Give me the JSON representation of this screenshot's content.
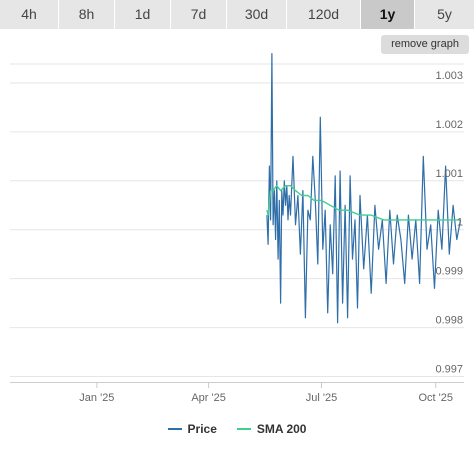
{
  "tabs": [
    {
      "label": "4h",
      "active": false
    },
    {
      "label": "8h",
      "active": false
    },
    {
      "label": "1d",
      "active": false
    },
    {
      "label": "7d",
      "active": false
    },
    {
      "label": "30d",
      "active": false
    },
    {
      "label": "120d",
      "active": false
    },
    {
      "label": "1y",
      "active": true
    },
    {
      "label": "5y",
      "active": false
    }
  ],
  "remove_graph_label": "remove graph",
  "legend": {
    "price_label": "Price",
    "sma_label": "SMA 200"
  },
  "colors": {
    "price": "#2f6ea8",
    "sma": "#3fcf8e",
    "grid": "#e6e6e6"
  },
  "chart_data": {
    "type": "line",
    "x_ticks": [
      "Jan '25",
      "Apr '25",
      "Jul '25",
      "Oct '25"
    ],
    "y_ticks": [
      "0.997",
      "0.998",
      "0.999",
      "1",
      "1.001",
      "1.002",
      "1.003"
    ],
    "ylim": [
      0.997,
      1.0035
    ],
    "xlim": [
      "2024-10-23",
      "2025-10-23"
    ],
    "grid": true,
    "legend_position": "bottom",
    "series": [
      {
        "name": "Price",
        "color": "#2f6ea8",
        "x": [
          "2025-05-18",
          "2025-05-19",
          "2025-05-20",
          "2025-05-21",
          "2025-05-22",
          "2025-05-23",
          "2025-05-24",
          "2025-05-25",
          "2025-05-26",
          "2025-05-27",
          "2025-05-28",
          "2025-05-29",
          "2025-05-30",
          "2025-05-31",
          "2025-06-01",
          "2025-06-02",
          "2025-06-03",
          "2025-06-04",
          "2025-06-05",
          "2025-06-06",
          "2025-06-08",
          "2025-06-10",
          "2025-06-12",
          "2025-06-14",
          "2025-06-16",
          "2025-06-18",
          "2025-06-20",
          "2025-06-22",
          "2025-06-24",
          "2025-06-26",
          "2025-06-28",
          "2025-06-30",
          "2025-07-02",
          "2025-07-04",
          "2025-07-06",
          "2025-07-08",
          "2025-07-10",
          "2025-07-12",
          "2025-07-14",
          "2025-07-16",
          "2025-07-18",
          "2025-07-20",
          "2025-07-22",
          "2025-07-24",
          "2025-07-26",
          "2025-07-28",
          "2025-07-30",
          "2025-08-01",
          "2025-08-04",
          "2025-08-07",
          "2025-08-10",
          "2025-08-13",
          "2025-08-16",
          "2025-08-19",
          "2025-08-22",
          "2025-08-25",
          "2025-08-28",
          "2025-08-31",
          "2025-09-03",
          "2025-09-06",
          "2025-09-09",
          "2025-09-12",
          "2025-09-15",
          "2025-09-18",
          "2025-09-21",
          "2025-09-24",
          "2025-09-27",
          "2025-09-30",
          "2025-10-03",
          "2025-10-06",
          "2025-10-09",
          "2025-10-12",
          "2025-10-15",
          "2025-10-18",
          "2025-10-21"
        ],
        "y": [
          1.0003,
          0.9997,
          1.0013,
          1.0002,
          1.0036,
          1.0001,
          1.0008,
          0.9998,
          1.001,
          0.9994,
          1.0006,
          0.9985,
          1.0008,
          1.0003,
          1.001,
          1.0005,
          1.0009,
          1.0002,
          1.0007,
          1.0003,
          1.0015,
          1.0001,
          1.0007,
          0.9995,
          1.0008,
          0.9982,
          1.0004,
          1.0002,
          1.0015,
          1.0006,
          0.9993,
          1.0023,
          0.9996,
          1.0004,
          0.9983,
          1.0001,
          0.9991,
          1.0011,
          0.9981,
          1.0012,
          0.9985,
          1.0005,
          0.9982,
          1.0011,
          0.9994,
          1.0002,
          0.9984,
          1.0007,
          0.9992,
          1.0003,
          0.9987,
          1.0005,
          0.9996,
          1.0002,
          0.9989,
          1.0004,
          0.9993,
          1.0003,
          0.9998,
          0.9989,
          1.0003,
          0.9994,
          1.0002,
          0.9989,
          1.0015,
          0.9996,
          1.0001,
          0.9988,
          1.0004,
          0.9996,
          1.0013,
          0.9995,
          1.0005,
          0.9998,
          1.0002
        ]
      },
      {
        "name": "SMA 200",
        "color": "#3fcf8e",
        "x": [
          "2025-05-18",
          "2025-05-19",
          "2025-05-21",
          "2025-05-23",
          "2025-05-26",
          "2025-05-29",
          "2025-06-02",
          "2025-06-06",
          "2025-06-10",
          "2025-06-15",
          "2025-06-20",
          "2025-06-25",
          "2025-07-01",
          "2025-07-08",
          "2025-07-15",
          "2025-07-22",
          "2025-08-01",
          "2025-08-10",
          "2025-08-20",
          "2025-09-01",
          "2025-09-10",
          "2025-09-20",
          "2025-10-01",
          "2025-10-10",
          "2025-10-21"
        ],
        "y": [
          1.0004,
          1.0003,
          1.0008,
          1.0008,
          1.0009,
          1.0008,
          1.0009,
          1.0009,
          1.0008,
          1.0007,
          1.0007,
          1.0006,
          1.0006,
          1.0005,
          1.0004,
          1.0004,
          1.0003,
          1.0003,
          1.0002,
          1.0002,
          1.0002,
          1.0002,
          1.0002,
          1.0002,
          1.0002
        ]
      }
    ]
  }
}
